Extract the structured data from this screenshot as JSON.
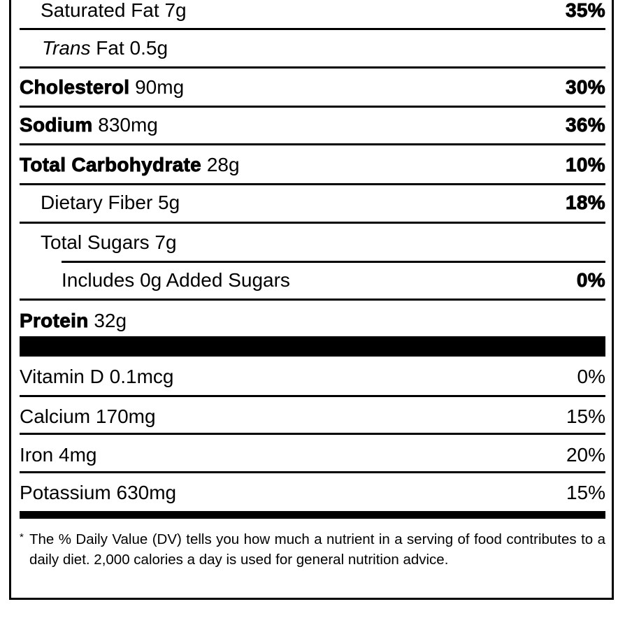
{
  "rows": [
    {
      "label": "Saturated Fat",
      "amount": "7g",
      "dv": "35%"
    },
    {
      "label": "Trans",
      "label_rest": "Fat",
      "amount": "0.5g",
      "dv": ""
    },
    {
      "label": "Cholesterol",
      "amount": "90mg",
      "dv": "30%"
    },
    {
      "label": "Sodium",
      "amount": "830mg",
      "dv": "36%"
    },
    {
      "label": "Total Carbohydrate",
      "amount": "28g",
      "dv": "10%"
    },
    {
      "label": "Dietary Fiber",
      "amount": "5g",
      "dv": "18%"
    },
    {
      "label": "Total Sugars",
      "amount": "7g",
      "dv": ""
    },
    {
      "label": "Includes 0g Added Sugars",
      "amount": "",
      "dv": "0%"
    },
    {
      "label": "Protein",
      "amount": "32g",
      "dv": ""
    }
  ],
  "vitamins": [
    {
      "label": "Vitamin D",
      "amount": "0.1mcg",
      "dv": "0%"
    },
    {
      "label": "Calcium",
      "amount": "170mg",
      "dv": "15%"
    },
    {
      "label": "Iron",
      "amount": "4mg",
      "dv": "20%"
    },
    {
      "label": "Potassium",
      "amount": "630mg",
      "dv": "15%"
    }
  ],
  "footnote": {
    "marker": "*",
    "text": "The % Daily Value (DV) tells you how much a nutrient in a serving of food contributes to a daily diet. 2,000 calories a day is used for general nutrition advice."
  }
}
